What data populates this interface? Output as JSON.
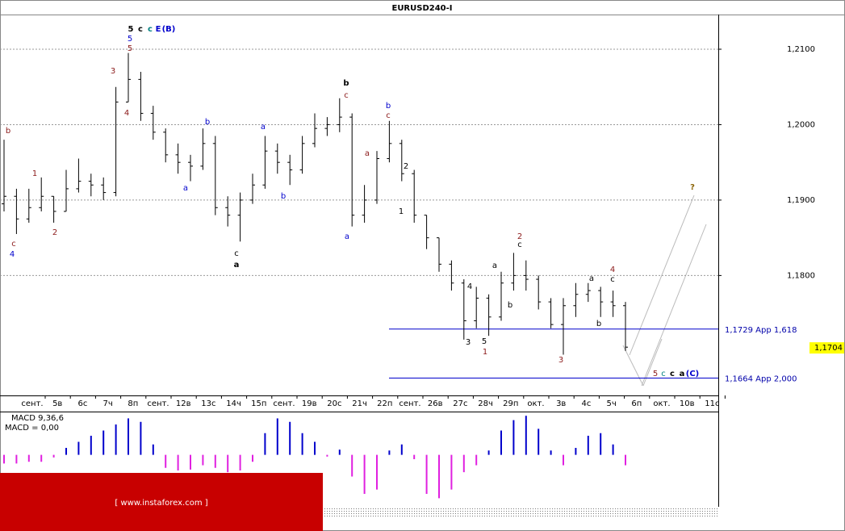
{
  "chart_data": {
    "type": "ohlc",
    "title": "EURUSD240-I",
    "x_axis_labels": [
      "сент.",
      "5в",
      "6с",
      "7ч",
      "8п",
      "сент.",
      "12в",
      "13с",
      "14ч",
      "15п",
      "сент.",
      "19в",
      "20с",
      "21ч",
      "22п",
      "сент.",
      "26в",
      "27с",
      "28ч",
      "29п",
      "окт.",
      "3в",
      "4с",
      "5ч",
      "6п",
      "окт.",
      "10в",
      "11с"
    ],
    "open": [
      1.1895,
      1.1905,
      1.1875,
      1.189,
      1.1905,
      1.1885,
      1.1915,
      1.1925,
      1.192,
      1.191,
      1.203,
      1.206,
      1.2015,
      1.199,
      1.196,
      1.195,
      1.1945,
      1.1975,
      1.189,
      1.188,
      1.19,
      1.192,
      1.1965,
      1.195,
      1.194,
      1.1975,
      1.1995,
      1.2,
      1.201,
      1.188,
      1.19,
      1.1955,
      1.1975,
      1.1935,
      1.188,
      1.185,
      1.1815,
      1.179,
      1.174,
      1.177,
      1.1745,
      1.179,
      1.18,
      1.1795,
      1.1765,
      1.1735,
      1.176,
      1.1775,
      1.178,
      1.1765,
      1.176
    ],
    "high": [
      1.198,
      1.1915,
      1.1915,
      1.193,
      1.1905,
      1.194,
      1.1955,
      1.1935,
      1.193,
      1.205,
      1.2095,
      1.207,
      1.2025,
      1.1995,
      1.1975,
      1.196,
      1.1995,
      1.1985,
      1.1905,
      1.191,
      1.1935,
      1.1985,
      1.1975,
      1.196,
      1.1985,
      1.2015,
      1.201,
      1.2035,
      1.2015,
      1.192,
      1.1965,
      1.2005,
      1.198,
      1.194,
      1.188,
      1.185,
      1.182,
      1.1795,
      1.1785,
      1.1775,
      1.1805,
      1.183,
      1.182,
      1.18,
      1.177,
      1.177,
      1.179,
      1.179,
      1.1785,
      1.178,
      1.1765
    ],
    "low": [
      1.1885,
      1.1855,
      1.187,
      1.1885,
      1.187,
      1.1885,
      1.191,
      1.1905,
      1.19,
      1.1905,
      1.203,
      1.2005,
      1.198,
      1.195,
      1.1935,
      1.1925,
      1.194,
      1.188,
      1.1865,
      1.1845,
      1.1895,
      1.1915,
      1.1935,
      1.192,
      1.1935,
      1.197,
      1.1985,
      1.199,
      1.1865,
      1.187,
      1.1895,
      1.195,
      1.1925,
      1.187,
      1.1835,
      1.1805,
      1.178,
      1.1715,
      1.173,
      1.172,
      1.174,
      1.178,
      1.178,
      1.1755,
      1.173,
      1.1695,
      1.1745,
      1.1765,
      1.1745,
      1.1745,
      1.17
    ],
    "close": [
      1.1905,
      1.1875,
      1.189,
      1.1905,
      1.1885,
      1.1915,
      1.1925,
      1.192,
      1.191,
      1.203,
      1.206,
      1.2015,
      1.199,
      1.196,
      1.195,
      1.1945,
      1.1975,
      1.189,
      1.188,
      1.19,
      1.192,
      1.1965,
      1.195,
      1.194,
      1.1975,
      1.1995,
      1.2,
      1.201,
      1.188,
      1.19,
      1.1955,
      1.1975,
      1.1935,
      1.188,
      1.185,
      1.1815,
      1.179,
      1.174,
      1.177,
      1.1745,
      1.179,
      1.18,
      1.1795,
      1.1765,
      1.1735,
      1.176,
      1.1775,
      1.178,
      1.1765,
      1.176,
      1.1705
    ],
    "ylim": [
      1.1641,
      1.2146
    ],
    "yticks": [
      {
        "value": 1.21,
        "label": "1,2100"
      },
      {
        "value": 1.2,
        "label": "1,2000"
      },
      {
        "value": 1.19,
        "label": "1,1900"
      },
      {
        "value": 1.18,
        "label": "1,1800"
      }
    ],
    "grid": true,
    "current_price": {
      "value": 1.1704,
      "label": "1,1704"
    },
    "levels": [
      {
        "value": 1.1729,
        "label": "1,1729 App 1,618",
        "color": "#0000cc"
      },
      {
        "value": 1.1664,
        "label": "1,1664 App 2,000",
        "color": "#0000cc"
      }
    ],
    "annotations": [
      "5",
      "c",
      "c",
      "E",
      "(B)",
      "5",
      "5",
      "3",
      "4",
      "b",
      "1",
      "2",
      "c",
      "4",
      "b",
      "a",
      "a",
      "b",
      "c",
      "a",
      "b",
      "c",
      "a",
      "a",
      "b",
      "c",
      "2",
      "1",
      "4",
      "5",
      "1",
      "3",
      "a",
      "b",
      "2",
      "c",
      "a",
      "b",
      "4",
      "c",
      "3",
      "?",
      "5",
      "c",
      "c",
      "a",
      "(C)"
    ],
    "macd": {
      "title": "MACD 9,36,6",
      "value_text": "MACD = 0,00",
      "positive_color": "#0000cc",
      "negative_color": "#e020e0",
      "values": [
        -0.001,
        -0.001,
        -0.0008,
        -0.0008,
        -0.0003,
        0.0008,
        0.0015,
        0.0022,
        0.0028,
        0.0035,
        0.0042,
        0.0038,
        0.0012,
        -0.0015,
        -0.0018,
        -0.0017,
        -0.0012,
        -0.0015,
        -0.002,
        -0.0018,
        -0.0008,
        0.0025,
        0.0042,
        0.0038,
        0.0025,
        0.0015,
        -0.0002,
        0.0006,
        -0.0025,
        -0.0045,
        -0.004,
        0.0005,
        0.0012,
        -0.0005,
        -0.0045,
        -0.005,
        -0.004,
        -0.002,
        -0.0012,
        0.0005,
        0.0028,
        0.004,
        0.0045,
        0.003,
        0.0005,
        -0.0012,
        0.0008,
        0.0022,
        0.0025,
        0.0012,
        -0.0012
      ],
      "ylim": [
        -0.0058,
        0.0048
      ]
    },
    "watermark": "[ www.instaforex.com ]"
  }
}
